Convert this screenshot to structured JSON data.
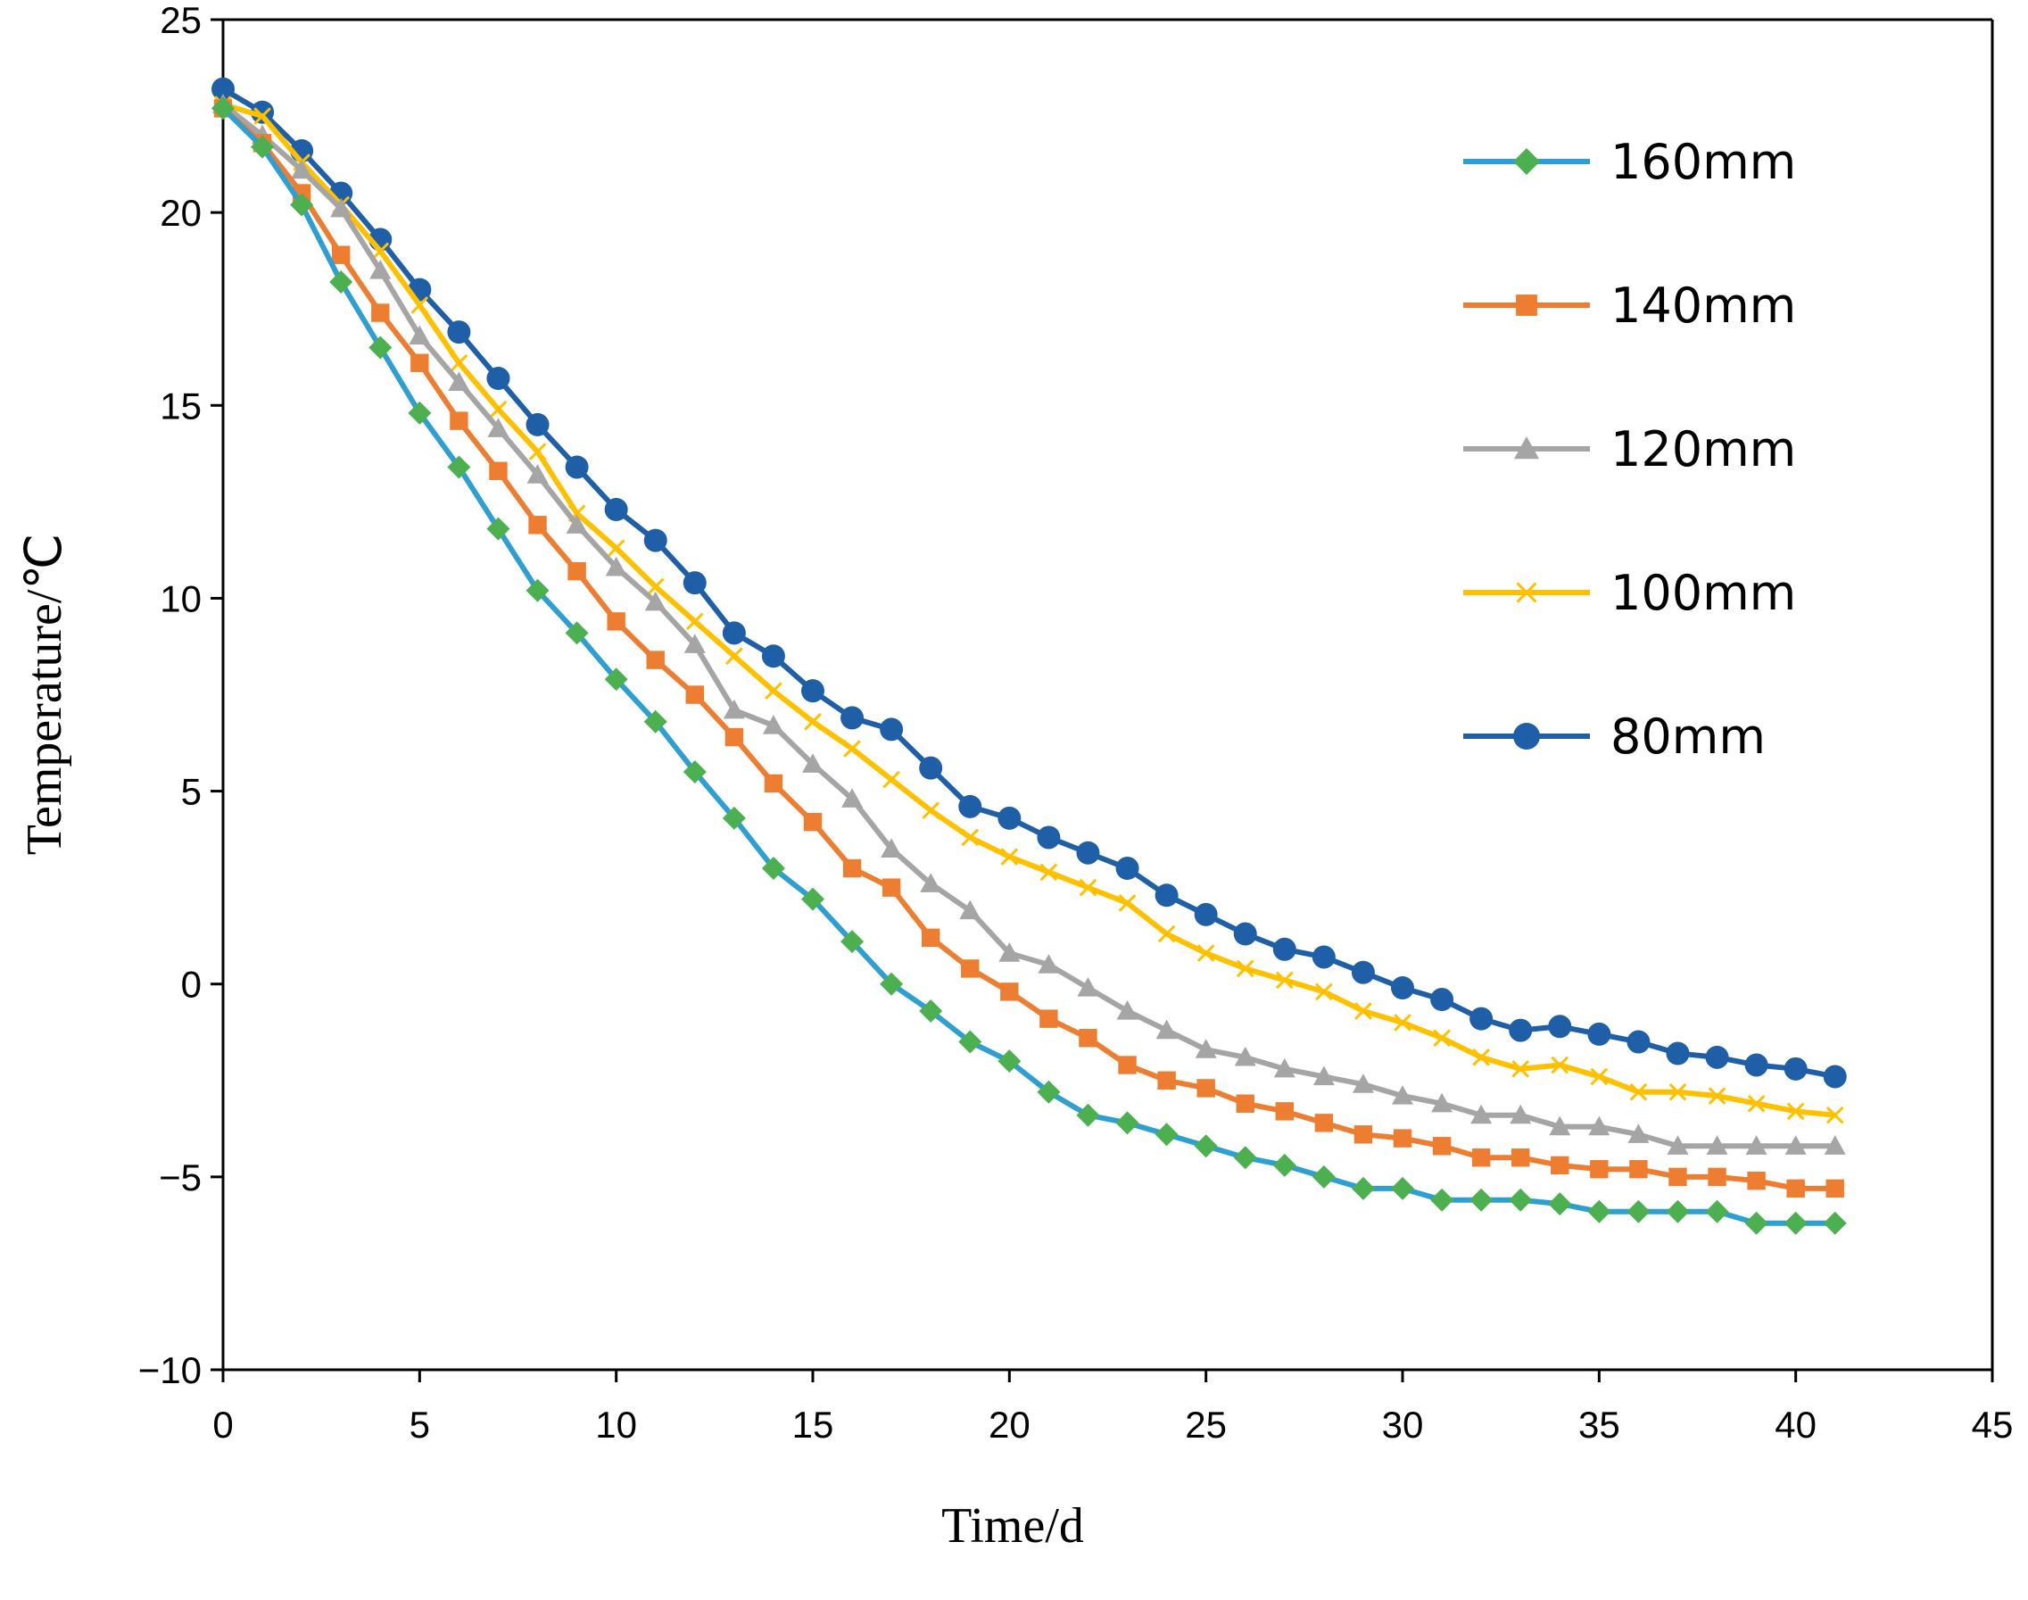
{
  "chart_data": {
    "type": "line",
    "title": "",
    "xlabel": "Time/d",
    "ylabel": "Temperature/℃",
    "xlim": [
      0,
      45
    ],
    "ylim": [
      -10,
      25
    ],
    "xticks": [
      0,
      5,
      10,
      15,
      20,
      25,
      30,
      35,
      40,
      45
    ],
    "yticks": [
      -10,
      -5,
      0,
      5,
      10,
      15,
      20,
      25
    ],
    "ytick_labels": [
      "−10",
      "−5",
      "0",
      "5",
      "10",
      "15",
      "20",
      "25"
    ],
    "grid": false,
    "legend_position": "right",
    "x": [
      0,
      1,
      2,
      3,
      4,
      5,
      6,
      7,
      8,
      9,
      10,
      11,
      12,
      13,
      14,
      15,
      16,
      17,
      18,
      19,
      20,
      21,
      22,
      23,
      24,
      25,
      26,
      27,
      28,
      29,
      30,
      31,
      32,
      33,
      34,
      35,
      36,
      37,
      38,
      39,
      40,
      41
    ],
    "series": [
      {
        "name": "160mm",
        "color": "#2E9FD0",
        "marker_color": "#4CAF50",
        "marker": "diamond",
        "values": [
          22.7,
          21.7,
          20.2,
          18.2,
          16.5,
          14.8,
          13.4,
          11.8,
          10.2,
          9.1,
          7.9,
          6.8,
          5.5,
          4.3,
          3.0,
          2.2,
          1.1,
          0.0,
          -0.7,
          -1.5,
          -2.0,
          -2.8,
          -3.4,
          -3.6,
          -3.9,
          -4.2,
          -4.5,
          -4.7,
          -5.0,
          -5.3,
          -5.3,
          -5.6,
          -5.6,
          -5.6,
          -5.7,
          -5.9,
          -5.9,
          -5.9,
          -5.9,
          -6.2,
          -6.2,
          -6.2
        ]
      },
      {
        "name": "140mm",
        "color": "#ED7D31",
        "marker_color": "#ED7D31",
        "marker": "square",
        "values": [
          22.7,
          21.8,
          20.5,
          18.9,
          17.4,
          16.1,
          14.6,
          13.3,
          11.9,
          10.7,
          9.4,
          8.4,
          7.5,
          6.4,
          5.2,
          4.2,
          3.0,
          2.5,
          1.2,
          0.4,
          -0.2,
          -0.9,
          -1.4,
          -2.1,
          -2.5,
          -2.7,
          -3.1,
          -3.3,
          -3.6,
          -3.9,
          -4.0,
          -4.2,
          -4.5,
          -4.5,
          -4.7,
          -4.8,
          -4.8,
          -5.0,
          -5.0,
          -5.1,
          -5.3,
          -5.3
        ]
      },
      {
        "name": "120mm",
        "color": "#A5A5A5",
        "marker_color": "#A5A5A5",
        "marker": "triangle",
        "values": [
          22.8,
          22.0,
          21.1,
          20.1,
          18.5,
          16.8,
          15.6,
          14.4,
          13.2,
          11.9,
          10.8,
          9.9,
          8.8,
          7.1,
          6.7,
          5.7,
          4.8,
          3.5,
          2.6,
          1.9,
          0.8,
          0.5,
          -0.1,
          -0.7,
          -1.2,
          -1.7,
          -1.9,
          -2.2,
          -2.4,
          -2.6,
          -2.9,
          -3.1,
          -3.4,
          -3.4,
          -3.7,
          -3.7,
          -3.9,
          -4.2,
          -4.2,
          -4.2,
          -4.2,
          -4.2
        ]
      },
      {
        "name": "100mm",
        "color": "#FFC000",
        "marker_color": "#FFC000",
        "marker": "x",
        "values": [
          22.8,
          22.5,
          21.3,
          20.2,
          19.0,
          17.6,
          16.1,
          14.9,
          13.8,
          12.2,
          11.3,
          10.3,
          9.4,
          8.5,
          7.6,
          6.8,
          6.1,
          5.3,
          4.5,
          3.8,
          3.3,
          2.9,
          2.5,
          2.1,
          1.3,
          0.8,
          0.4,
          0.1,
          -0.2,
          -0.7,
          -1.0,
          -1.4,
          -1.9,
          -2.2,
          -2.1,
          -2.4,
          -2.8,
          -2.8,
          -2.9,
          -3.1,
          -3.3,
          -3.4
        ]
      },
      {
        "name": "80mm",
        "color": "#1F5FA8",
        "marker_color": "#1F5FA8",
        "marker": "circle",
        "values": [
          23.2,
          22.6,
          21.6,
          20.5,
          19.3,
          18.0,
          16.9,
          15.7,
          14.5,
          13.4,
          12.3,
          11.5,
          10.4,
          9.1,
          8.5,
          7.6,
          6.9,
          6.6,
          5.6,
          4.6,
          4.3,
          3.8,
          3.4,
          3.0,
          2.3,
          1.8,
          1.3,
          0.9,
          0.7,
          0.3,
          -0.1,
          -0.4,
          -0.9,
          -1.2,
          -1.1,
          -1.3,
          -1.5,
          -1.8,
          -1.9,
          -2.1,
          -2.2,
          -2.4
        ]
      }
    ]
  }
}
